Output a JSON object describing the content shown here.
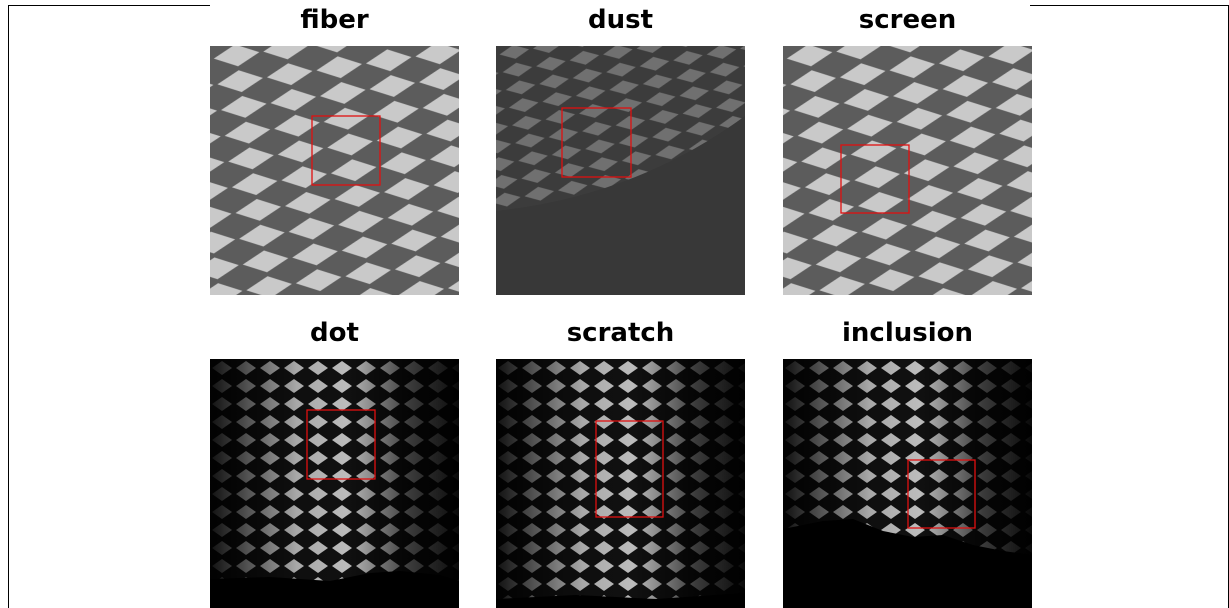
{
  "panels": [
    {
      "title": "fiber"
    },
    {
      "title": "dust"
    },
    {
      "title": "screen"
    },
    {
      "title": "dot"
    },
    {
      "title": "scratch"
    },
    {
      "title": "inclusion"
    }
  ]
}
